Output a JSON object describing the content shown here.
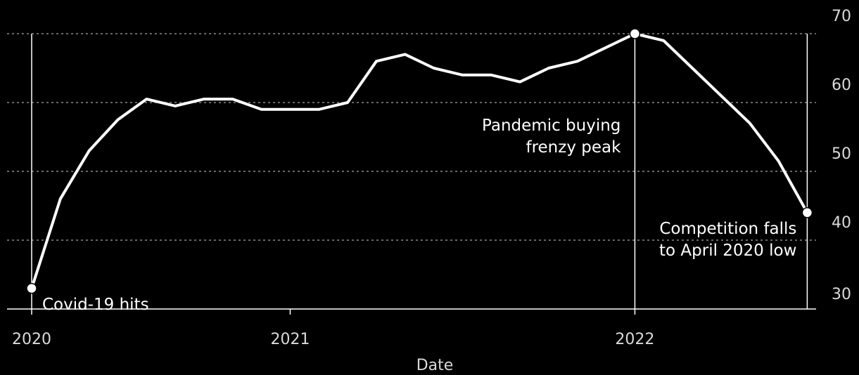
{
  "chart_data": {
    "type": "line",
    "xlabel": "Date",
    "ylabel": "",
    "ylim": [
      30,
      70
    ],
    "y_ticks": [
      30,
      40,
      50,
      60,
      70
    ],
    "y_axis_side": "right",
    "grid": "horizontal dashed",
    "x_ticks": [
      {
        "label": "2020",
        "value": "2020-04"
      },
      {
        "label": "2021",
        "value": "2021-01"
      },
      {
        "label": "2022",
        "value": "2022-01"
      }
    ],
    "series": [
      {
        "color": "#ffffff",
        "points": [
          {
            "x": "2020-04",
            "y": 33
          },
          {
            "x": "2020-05",
            "y": 46
          },
          {
            "x": "2020-06",
            "y": 53
          },
          {
            "x": "2020-07",
            "y": 57.5
          },
          {
            "x": "2020-08",
            "y": 60.5
          },
          {
            "x": "2020-09",
            "y": 59.5
          },
          {
            "x": "2020-10",
            "y": 60.5
          },
          {
            "x": "2020-11",
            "y": 60.5
          },
          {
            "x": "2020-12",
            "y": 59
          },
          {
            "x": "2021-01",
            "y": 59
          },
          {
            "x": "2021-02",
            "y": 59
          },
          {
            "x": "2021-03",
            "y": 60
          },
          {
            "x": "2021-04",
            "y": 66
          },
          {
            "x": "2021-05",
            "y": 67
          },
          {
            "x": "2021-06",
            "y": 65
          },
          {
            "x": "2021-07",
            "y": 64
          },
          {
            "x": "2021-08",
            "y": 64
          },
          {
            "x": "2021-09",
            "y": 63
          },
          {
            "x": "2021-10",
            "y": 65
          },
          {
            "x": "2021-11",
            "y": 66
          },
          {
            "x": "2021-12",
            "y": 68
          },
          {
            "x": "2022-01",
            "y": 70
          },
          {
            "x": "2022-02",
            "y": 69
          },
          {
            "x": "2022-03",
            "y": 65
          },
          {
            "x": "2022-04",
            "y": 61
          },
          {
            "x": "2022-05",
            "y": 57
          },
          {
            "x": "2022-06",
            "y": 51.5
          },
          {
            "x": "2022-07",
            "y": 44
          }
        ],
        "markers": [
          "2020-04",
          "2022-01",
          "2022-07"
        ]
      }
    ],
    "annotations": [
      {
        "x": "2020-04",
        "lines": [
          "Covid-19 hits"
        ]
      },
      {
        "x": "2022-01",
        "lines": [
          "Pandemic buying",
          "frenzy peak"
        ]
      },
      {
        "x": "2022-07",
        "lines": [
          "Competition falls",
          "to April 2020 low"
        ]
      }
    ]
  }
}
